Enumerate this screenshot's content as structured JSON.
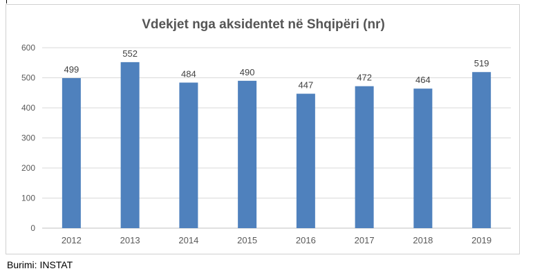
{
  "chart_data": {
    "type": "bar",
    "title": "Vdekjet nga aksidentet në Shqipëri (nr)",
    "categories": [
      "2012",
      "2013",
      "2014",
      "2015",
      "2016",
      "2017",
      "2018",
      "2019"
    ],
    "values": [
      499,
      552,
      484,
      490,
      447,
      472,
      464,
      519
    ],
    "data_labels": [
      "499",
      "552",
      "484",
      "490",
      "447",
      "472",
      "464",
      "519"
    ],
    "y_ticks": [
      "0",
      "100",
      "200",
      "300",
      "400",
      "500",
      "600"
    ],
    "ylim": [
      0,
      600
    ],
    "grid": true,
    "legend": "none",
    "bar_color": "#4f81bd",
    "grid_color": "#d9d9d9",
    "axis_label_color": "#595959"
  },
  "source_text": "Burimi: INSTAT"
}
